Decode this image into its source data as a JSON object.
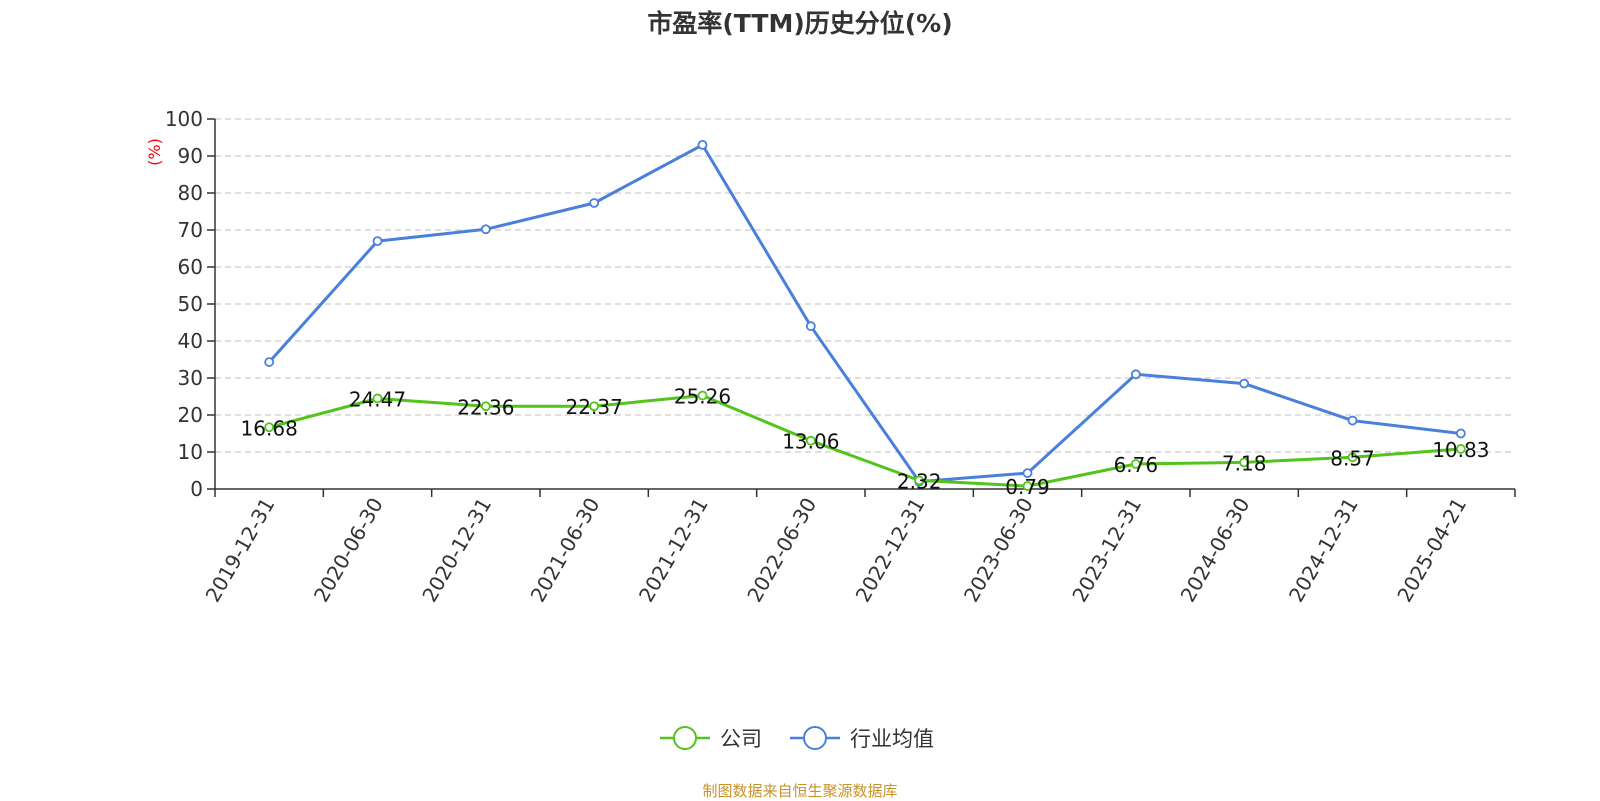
{
  "chart_data": {
    "type": "line",
    "title": "市盈率(TTM)历史分位(%)",
    "ylabel": "(%)",
    "xlabel": "",
    "ylim": [
      0,
      100
    ],
    "yticks": [
      0,
      10,
      20,
      30,
      40,
      50,
      60,
      70,
      80,
      90,
      100
    ],
    "grid": true,
    "legend_position": "bottom-center",
    "categories": [
      "2019-12-31",
      "2020-06-30",
      "2020-12-31",
      "2021-06-30",
      "2021-12-31",
      "2022-06-30",
      "2022-12-31",
      "2023-06-30",
      "2023-12-31",
      "2024-06-30",
      "2024-12-31",
      "2025-04-21"
    ],
    "series": [
      {
        "name": "公司",
        "color": "#52c41a",
        "values": [
          16.68,
          24.47,
          22.36,
          22.37,
          25.26,
          13.06,
          2.32,
          0.79,
          6.76,
          7.18,
          8.57,
          10.83
        ],
        "labels": [
          "16.68",
          "24.47",
          "22.36",
          "22.37",
          "25.26",
          "13.06",
          "2.32",
          "0.79",
          "6.76",
          "7.18",
          "8.57",
          "10.83"
        ]
      },
      {
        "name": "行业均值",
        "color": "#4a7fdc",
        "values": [
          34.3,
          67.0,
          70.2,
          77.3,
          93.0,
          44.0,
          2.0,
          4.3,
          31.0,
          28.5,
          18.5,
          15.0
        ]
      }
    ]
  },
  "source": "制图数据来自恒生聚源数据库"
}
